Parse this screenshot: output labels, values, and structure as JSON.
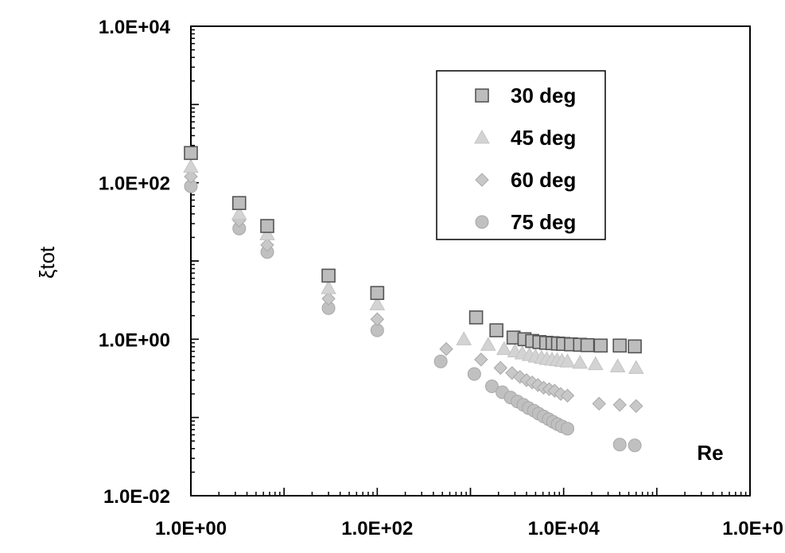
{
  "chart_data": {
    "type": "scatter",
    "xscale": "log",
    "yscale": "log",
    "xlim": [
      1,
      1000000
    ],
    "ylim": [
      0.01,
      10000
    ],
    "xlabel": "Re",
    "ylabel": "ξtot",
    "xticks": [
      "1.0E+00",
      "1.0E+02",
      "1.0E+04",
      "1.0E+0"
    ],
    "yticks": [
      "1.0E+04",
      "1.0E+02",
      "1.0E+00",
      "1.0E-02"
    ],
    "grid": false,
    "legend_position": "top-center",
    "series": [
      {
        "name": "30 deg",
        "marker": "square",
        "color": "#bdbdbd",
        "points": [
          [
            1,
            240
          ],
          [
            3.3,
            55
          ],
          [
            6.6,
            28
          ],
          [
            30,
            6.5
          ],
          [
            100,
            3.9
          ],
          [
            1150,
            1.9
          ],
          [
            1900,
            1.3
          ],
          [
            2900,
            1.05
          ],
          [
            3800,
            1.0
          ],
          [
            4600,
            0.95
          ],
          [
            5500,
            0.92
          ],
          [
            6500,
            0.9
          ],
          [
            7600,
            0.89
          ],
          [
            8700,
            0.88
          ],
          [
            9900,
            0.87
          ],
          [
            12000,
            0.86
          ],
          [
            15000,
            0.85
          ],
          [
            18000,
            0.84
          ],
          [
            25000,
            0.83
          ],
          [
            40000,
            0.83
          ],
          [
            58000,
            0.81
          ]
        ]
      },
      {
        "name": "45 deg",
        "marker": "triangle",
        "color": "#d3d3d3",
        "points": [
          [
            1,
            160
          ],
          [
            3.3,
            40
          ],
          [
            6.6,
            22
          ],
          [
            30,
            4.5
          ],
          [
            100,
            2.8
          ],
          [
            850,
            1.0
          ],
          [
            1550,
            0.85
          ],
          [
            2300,
            0.75
          ],
          [
            3000,
            0.7
          ],
          [
            3600,
            0.66
          ],
          [
            4300,
            0.63
          ],
          [
            5000,
            0.6
          ],
          [
            5800,
            0.58
          ],
          [
            6600,
            0.56
          ],
          [
            7500,
            0.55
          ],
          [
            8500,
            0.54
          ],
          [
            9600,
            0.53
          ],
          [
            11000,
            0.52
          ],
          [
            15000,
            0.5
          ],
          [
            22000,
            0.48
          ],
          [
            38000,
            0.45
          ],
          [
            60000,
            0.43
          ]
        ]
      },
      {
        "name": "60 deg",
        "marker": "diamond",
        "color": "#c8c8c8",
        "points": [
          [
            1,
            120
          ],
          [
            3.3,
            33
          ],
          [
            6.6,
            16
          ],
          [
            30,
            3.3
          ],
          [
            100,
            1.8
          ],
          [
            550,
            0.75
          ],
          [
            1300,
            0.55
          ],
          [
            2100,
            0.43
          ],
          [
            2800,
            0.37
          ],
          [
            3400,
            0.33
          ],
          [
            4000,
            0.3
          ],
          [
            4600,
            0.28
          ],
          [
            5300,
            0.26
          ],
          [
            6100,
            0.24
          ],
          [
            7000,
            0.23
          ],
          [
            8000,
            0.22
          ],
          [
            9300,
            0.2
          ],
          [
            11000,
            0.19
          ],
          [
            24000,
            0.15
          ],
          [
            40000,
            0.145
          ],
          [
            60000,
            0.14
          ]
        ]
      },
      {
        "name": "75 deg",
        "marker": "circle",
        "color": "#c0c0c0",
        "points": [
          [
            1,
            90
          ],
          [
            3.3,
            26
          ],
          [
            6.6,
            13
          ],
          [
            30,
            2.5
          ],
          [
            100,
            1.3
          ],
          [
            480,
            0.52
          ],
          [
            1100,
            0.36
          ],
          [
            1700,
            0.25
          ],
          [
            2200,
            0.21
          ],
          [
            2700,
            0.18
          ],
          [
            3200,
            0.16
          ],
          [
            3700,
            0.145
          ],
          [
            4200,
            0.132
          ],
          [
            4800,
            0.122
          ],
          [
            5400,
            0.112
          ],
          [
            6100,
            0.103
          ],
          [
            6900,
            0.095
          ],
          [
            7700,
            0.088
          ],
          [
            8600,
            0.082
          ],
          [
            9600,
            0.077
          ],
          [
            11000,
            0.072
          ],
          [
            40000,
            0.045
          ],
          [
            58000,
            0.044
          ]
        ]
      }
    ]
  }
}
